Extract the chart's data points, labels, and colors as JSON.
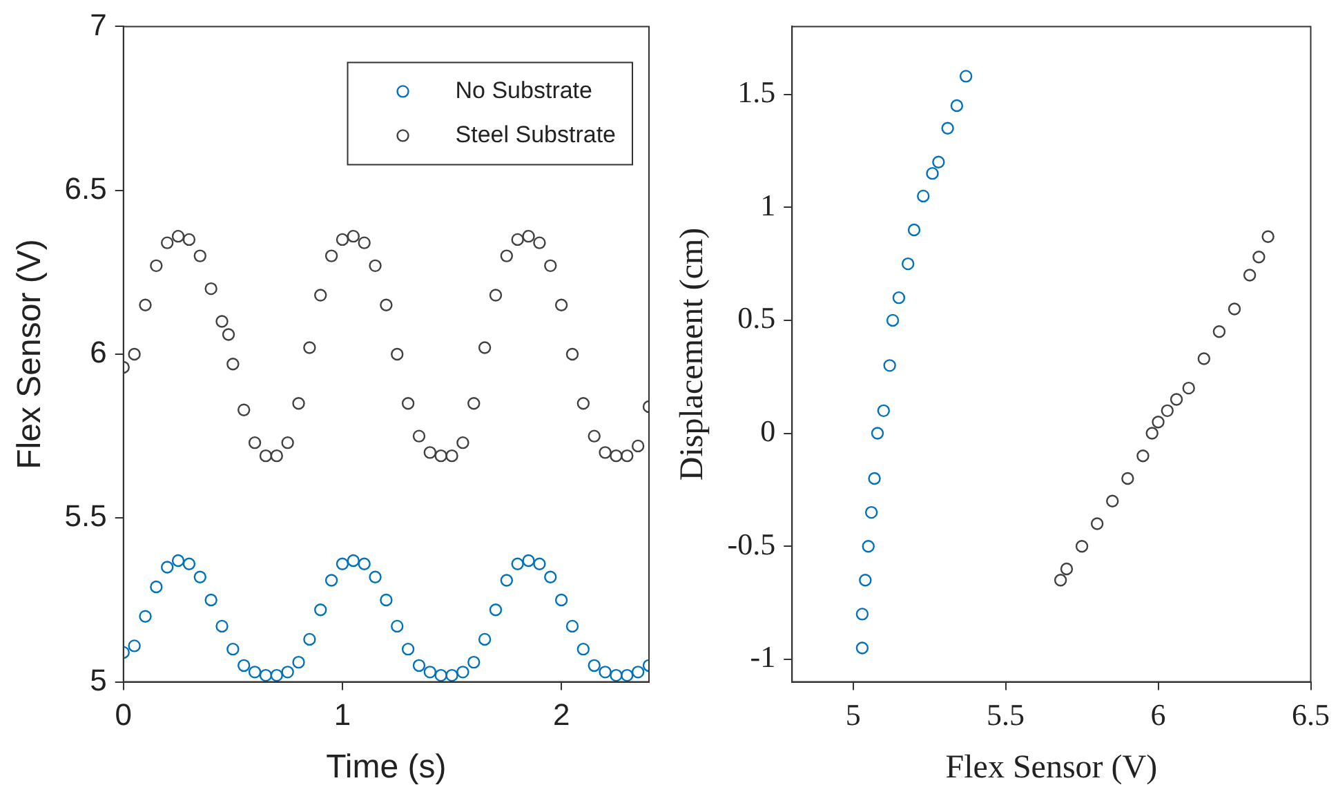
{
  "chart_data": [
    {
      "type": "scatter",
      "xlabel": "Time (s)",
      "ylabel": "Flex Sensor (V)",
      "xlim": [
        0,
        2.4
      ],
      "xticks": [
        0,
        1,
        2
      ],
      "ylim": [
        5,
        7
      ],
      "yticks": [
        5,
        5.5,
        6,
        6.5,
        7
      ],
      "grid": false,
      "legend": "top right",
      "marker": "circle",
      "series": [
        {
          "name": "No Substrate",
          "color": "#0072bd",
          "x": [
            0,
            0.05,
            0.1,
            0.15,
            0.2,
            0.25,
            0.3,
            0.35,
            0.4,
            0.45,
            0.5,
            0.55,
            0.6,
            0.65,
            0.7,
            0.75,
            0.8,
            0.85,
            0.9,
            0.95,
            1.0,
            1.05,
            1.1,
            1.15,
            1.2,
            1.25,
            1.3,
            1.35,
            1.4,
            1.45,
            1.5,
            1.55,
            1.6,
            1.65,
            1.7,
            1.75,
            1.8,
            1.85,
            1.9,
            1.95,
            2.0,
            2.05,
            2.1,
            2.15,
            2.2,
            2.25,
            2.3,
            2.35,
            2.4
          ],
          "values": [
            5.09,
            5.11,
            5.2,
            5.29,
            5.35,
            5.37,
            5.36,
            5.32,
            5.25,
            5.17,
            5.1,
            5.05,
            5.03,
            5.02,
            5.02,
            5.03,
            5.06,
            5.13,
            5.22,
            5.31,
            5.36,
            5.37,
            5.36,
            5.32,
            5.25,
            5.17,
            5.1,
            5.05,
            5.03,
            5.02,
            5.02,
            5.03,
            5.06,
            5.13,
            5.22,
            5.31,
            5.36,
            5.37,
            5.36,
            5.32,
            5.25,
            5.17,
            5.1,
            5.05,
            5.03,
            5.02,
            5.02,
            5.03,
            5.05
          ]
        },
        {
          "name": "Steel Substrate",
          "color": "#404040",
          "x": [
            0,
            0.05,
            0.1,
            0.15,
            0.2,
            0.25,
            0.3,
            0.35,
            0.4,
            0.45,
            0.48,
            0.5,
            0.55,
            0.6,
            0.65,
            0.7,
            0.75,
            0.8,
            0.85,
            0.9,
            0.95,
            1.0,
            1.05,
            1.1,
            1.15,
            1.2,
            1.25,
            1.3,
            1.35,
            1.4,
            1.45,
            1.5,
            1.55,
            1.6,
            1.65,
            1.7,
            1.75,
            1.8,
            1.85,
            1.9,
            1.95,
            2.0,
            2.05,
            2.1,
            2.15,
            2.2,
            2.25,
            2.3,
            2.35,
            2.4
          ],
          "values": [
            5.96,
            6.0,
            6.15,
            6.27,
            6.34,
            6.36,
            6.35,
            6.3,
            6.2,
            6.1,
            6.06,
            5.97,
            5.83,
            5.73,
            5.69,
            5.69,
            5.73,
            5.85,
            6.02,
            6.18,
            6.3,
            6.35,
            6.36,
            6.34,
            6.27,
            6.15,
            6.0,
            5.85,
            5.75,
            5.7,
            5.69,
            5.69,
            5.73,
            5.85,
            6.02,
            6.18,
            6.3,
            6.35,
            6.36,
            6.34,
            6.27,
            6.15,
            6.0,
            5.85,
            5.75,
            5.7,
            5.69,
            5.69,
            5.72,
            5.84
          ]
        }
      ]
    },
    {
      "type": "scatter",
      "xlabel": "Flex Sensor (V)",
      "ylabel": "Displacement (cm)",
      "xlim": [
        4.8,
        6.5
      ],
      "xticks": [
        5,
        5.5,
        6,
        6.5
      ],
      "ylim": [
        -1.1,
        1.8
      ],
      "yticks": [
        -1,
        -0.5,
        0,
        0.5,
        1,
        1.5
      ],
      "grid": false,
      "marker": "circle",
      "series": [
        {
          "color": "#0072bd",
          "x": [
            5.03,
            5.03,
            5.04,
            5.05,
            5.06,
            5.07,
            5.08,
            5.1,
            5.12,
            5.13,
            5.15,
            5.18,
            5.2,
            5.23,
            5.26,
            5.28,
            5.31,
            5.34,
            5.37
          ],
          "values": [
            -0.95,
            -0.8,
            -0.65,
            -0.5,
            -0.35,
            -0.2,
            0,
            0.1,
            0.3,
            0.5,
            0.6,
            0.75,
            0.9,
            1.05,
            1.15,
            1.2,
            1.35,
            1.45,
            1.58
          ]
        },
        {
          "color": "#404040",
          "x": [
            5.68,
            5.7,
            5.75,
            5.8,
            5.85,
            5.9,
            5.95,
            5.98,
            6.0,
            6.03,
            6.06,
            6.1,
            6.15,
            6.2,
            6.25,
            6.3,
            6.33,
            6.36
          ],
          "values": [
            -0.65,
            -0.6,
            -0.5,
            -0.4,
            -0.3,
            -0.2,
            -0.1,
            0,
            0.05,
            0.1,
            0.15,
            0.2,
            0.33,
            0.45,
            0.55,
            0.7,
            0.78,
            0.87
          ]
        }
      ]
    }
  ]
}
